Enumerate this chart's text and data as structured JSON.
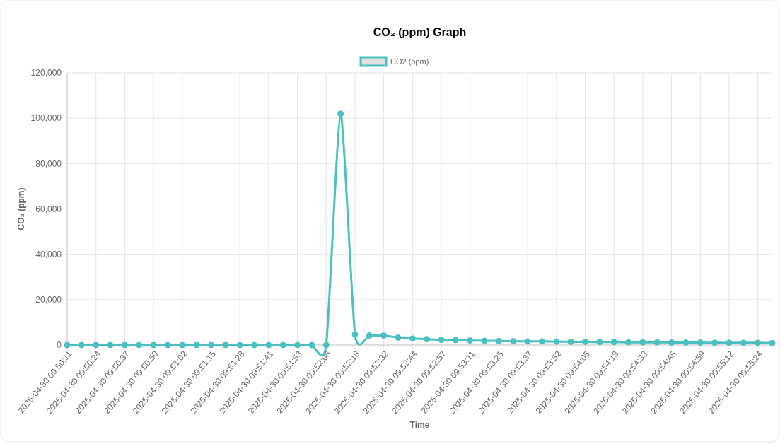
{
  "chart_data": {
    "type": "line",
    "title": "CO₂ (ppm) Graph",
    "xlabel": "Time",
    "ylabel": "CO₂ (ppm)",
    "categories": [
      "2025-04-30 09:50:11",
      null,
      "2025-04-30 09:50:24",
      null,
      "2025-04-30 09:50:37",
      null,
      "2025-04-30 09:50:50",
      null,
      "2025-04-30 09:51:02",
      null,
      "2025-04-30 09:51:15",
      null,
      "2025-04-30 09:51:28",
      null,
      "2025-04-30 09:51:41",
      null,
      "2025-04-30 09:51:53",
      null,
      "2025-04-30 09:52:06",
      null,
      "2025-04-30 09:52:18",
      null,
      "2025-04-30 09:52:32",
      null,
      "2025-04-30 09:52:44",
      null,
      "2025-04-30 09:52:57",
      null,
      "2025-04-30 09:53:11",
      null,
      "2025-04-30 09:53:25",
      null,
      "2025-04-30 09:53:37",
      null,
      "2025-04-30 09:53:52",
      null,
      "2025-04-30 09:54:05",
      null,
      "2025-04-30 09:54:18",
      null,
      "2025-04-30 09:54:33",
      null,
      "2025-04-30 09:54:45",
      null,
      "2025-04-30 09:54:59",
      null,
      "2025-04-30 09:55:12",
      null,
      "2025-04-30 09:55:24",
      null
    ],
    "series": [
      {
        "name": "CO2 (ppm)",
        "color": "#4bc0c0",
        "values": [
          0,
          0,
          0,
          0,
          0,
          0,
          0,
          0,
          0,
          0,
          0,
          0,
          0,
          0,
          0,
          0,
          0,
          0,
          0,
          102000,
          4700,
          4200,
          4200,
          3300,
          2900,
          2600,
          2300,
          2200,
          2000,
          1900,
          1800,
          1700,
          1600,
          1600,
          1500,
          1400,
          1400,
          1300,
          1300,
          1200,
          1200,
          1200,
          1100,
          1100,
          1100,
          1000,
          1000,
          1000,
          1000,
          900
        ]
      }
    ],
    "ylim": [
      0,
      120000
    ],
    "yticks": [
      {
        "value": 0,
        "label": "0"
      },
      {
        "value": 20000,
        "label": "20,000"
      },
      {
        "value": 40000,
        "label": "40,000"
      },
      {
        "value": 60000,
        "label": "60,000"
      },
      {
        "value": 80000,
        "label": "80,000"
      },
      {
        "value": 100000,
        "label": "100,000"
      },
      {
        "value": 120000,
        "label": "120,000"
      }
    ],
    "grid": true,
    "legend": "top",
    "marker": "circle",
    "line_style": "solid"
  }
}
